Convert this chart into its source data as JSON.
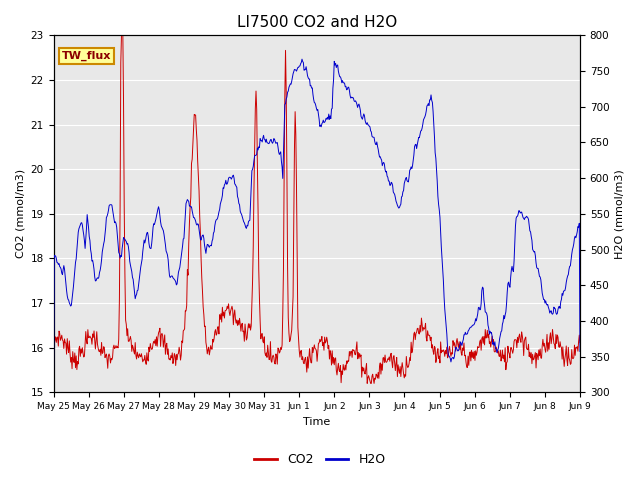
{
  "title": "LI7500 CO2 and H2O",
  "xlabel": "Time",
  "ylabel_left": "CO2 (mmol/m3)",
  "ylabel_right": "H2O (mmol/m3)",
  "ylim_left": [
    15.0,
    23.0
  ],
  "ylim_right": [
    300,
    800
  ],
  "yticks_left": [
    15.0,
    16.0,
    17.0,
    18.0,
    19.0,
    20.0,
    21.0,
    22.0,
    23.0
  ],
  "yticks_right": [
    300,
    350,
    400,
    450,
    500,
    550,
    600,
    650,
    700,
    750,
    800
  ],
  "xtick_labels": [
    "May 25",
    "May 26",
    "May 27",
    "May 28",
    "May 29",
    "May 30",
    "May 31",
    "Jun 1",
    "Jun 2",
    "Jun 3",
    "Jun 4",
    "Jun 5",
    "Jun 6",
    "Jun 7",
    "Jun 8",
    "Jun 9"
  ],
  "co2_color": "#cc0000",
  "h2o_color": "#0000cc",
  "bg_color": "#e8e8e8",
  "annotation_text": "TW_flux",
  "annotation_bg": "#ffff99",
  "annotation_border": "#cc8800",
  "legend_co2": "CO2",
  "legend_h2o": "H2O",
  "title_fontsize": 11
}
